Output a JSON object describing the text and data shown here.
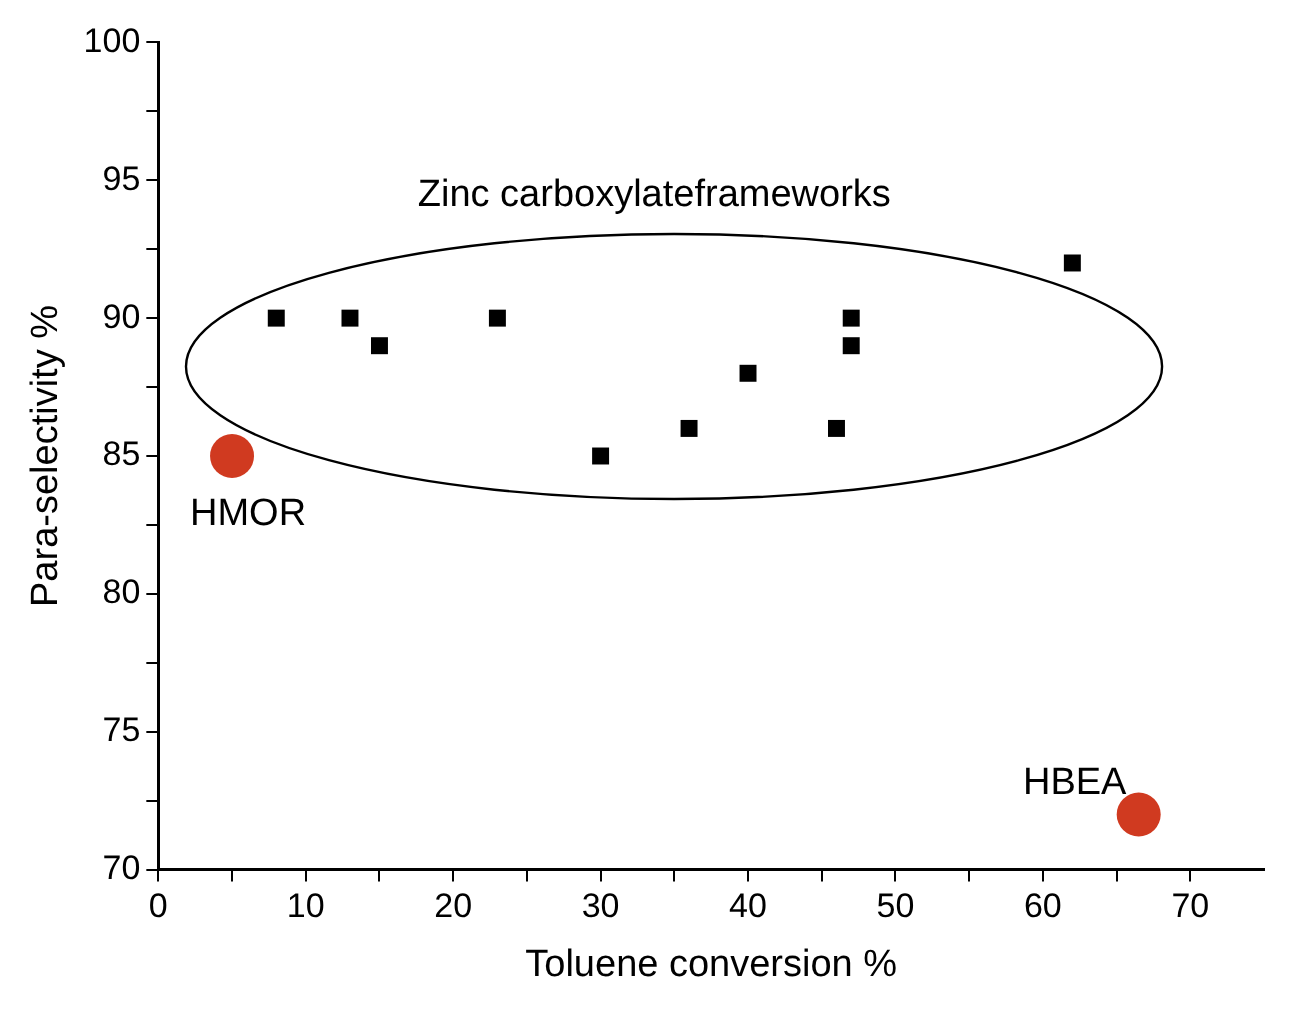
{
  "chart_data": {
    "type": "scatter",
    "xlabel": "Toluene conversion %",
    "ylabel": "Para-selectivity %",
    "series": [
      {
        "marker": "square",
        "color": "#000000",
        "x": [
          8,
          13,
          15,
          23,
          30,
          36,
          40,
          46,
          47,
          47,
          62
        ],
        "values": [
          90,
          90,
          89,
          90,
          85,
          86,
          88,
          86,
          90,
          89,
          92
        ]
      },
      {
        "marker": "circle",
        "color": "#d03a20",
        "x": [
          5,
          66.5
        ],
        "values": [
          85,
          72
        ]
      }
    ],
    "annotations": [
      "Zinc carboxylateframeworks",
      {
        "text": "HMOR",
        "x": 5,
        "y": 85
      },
      {
        "text": "HBEA",
        "x": 66.5,
        "y": 72
      }
    ],
    "xlim": [
      0,
      75
    ],
    "xticks": [
      0,
      {
        "value": 5,
        "label": null
      },
      10,
      {
        "value": 15,
        "label": null
      },
      20,
      {
        "value": 25,
        "label": null
      },
      30,
      {
        "value": 35,
        "label": null
      },
      40,
      {
        "value": 45,
        "label": null
      },
      50,
      {
        "value": 55,
        "label": null
      },
      60,
      {
        "value": 65,
        "label": null
      },
      70
    ],
    "ylim": [
      70,
      100
    ],
    "yticks": [
      70,
      {
        "value": 72.5,
        "label": null
      },
      75,
      {
        "value": 77.5,
        "label": null
      },
      80,
      {
        "value": 82.5,
        "label": null
      },
      85,
      {
        "value": 87.5,
        "label": null
      },
      90,
      {
        "value": 92.5,
        "label": null
      },
      95,
      {
        "value": 97.5,
        "label": null
      },
      100
    ],
    "grid": false,
    "legend": false
  }
}
